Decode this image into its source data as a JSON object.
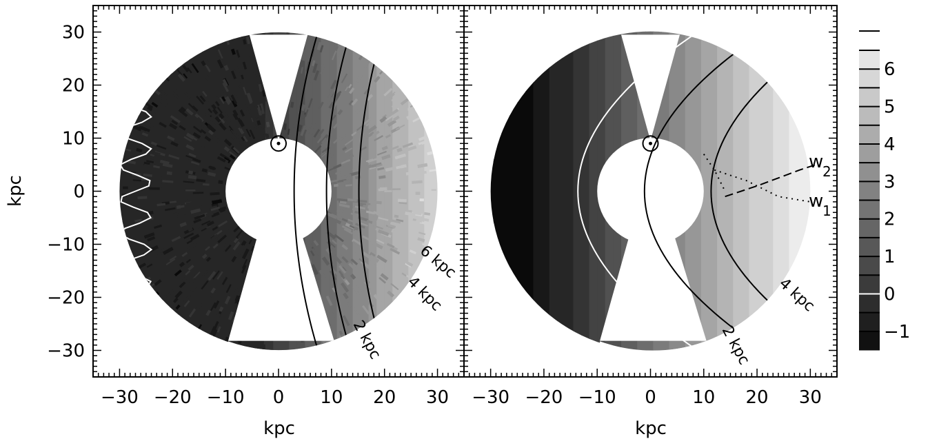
{
  "figure": {
    "xlabel": "kpc",
    "ylabel": "kpc"
  },
  "chart_data": [
    {
      "type": "heatmap",
      "panel": "left",
      "xlabel": "kpc",
      "ylabel": "kpc",
      "xlim": [
        -35,
        35
      ],
      "ylim": [
        -35,
        35
      ],
      "xticks": [
        -30,
        -20,
        -10,
        0,
        10,
        20,
        30
      ],
      "yticks": [
        30,
        20,
        10,
        0,
        -10,
        -20,
        -30
      ],
      "xtick_labels": [
        "−30",
        "−20",
        "−10",
        "0",
        "10",
        "20",
        "30"
      ],
      "ytick_labels": [
        "30",
        "20",
        "10",
        "0",
        "−10",
        "−20",
        "−30"
      ],
      "outer_radius_kpc": 30,
      "inner_radius_kpc": 10,
      "sun_position": [
        0,
        9
      ],
      "contour_labels": [
        "2 kpc",
        "4 kpc",
        "6 kpc"
      ],
      "contour_levels_kpc": [
        0,
        2,
        4,
        6
      ]
    },
    {
      "type": "heatmap",
      "panel": "right",
      "xlabel": "kpc",
      "xlim": [
        -35,
        35
      ],
      "ylim": [
        -35,
        35
      ],
      "xticks": [
        -30,
        -20,
        -10,
        0,
        10,
        20,
        30
      ],
      "xtick_labels": [
        "−30",
        "−20",
        "−10",
        "0",
        "10",
        "20",
        "30"
      ],
      "outer_radius_kpc": 30,
      "inner_radius_kpc": 10,
      "sun_position": [
        0,
        9
      ],
      "contour_labels": [
        "2 kpc",
        "4 kpc"
      ],
      "contour_levels_kpc": [
        0,
        2,
        4
      ],
      "line_labels": [
        "w",
        "2",
        "w",
        "1"
      ]
    }
  ],
  "colorbar": {
    "tick_values": [
      -1,
      0,
      1,
      2,
      3,
      4,
      5,
      6
    ],
    "tick_labels": [
      "−1",
      "0",
      "1",
      "2",
      "3",
      "4",
      "5",
      "6"
    ],
    "range": [
      -1.5,
      6.5
    ],
    "zero_line_color": "#ffffff",
    "line_color": "#000000"
  },
  "colors": {
    "low": "#0a0a0a",
    "high": "#ececec",
    "background": "#ffffff"
  }
}
